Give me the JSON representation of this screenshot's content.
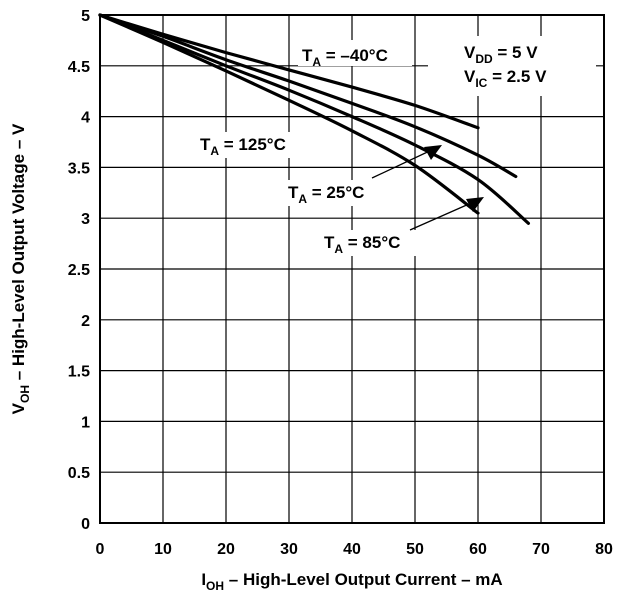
{
  "chart_data": {
    "type": "line",
    "xlabel": {
      "main": "I",
      "sub": "OH",
      "rest": " – High-Level Output Current – mA"
    },
    "ylabel": {
      "main": "V",
      "sub": "OH",
      "rest": " – High-Level Output Voltage – V"
    },
    "xlim": [
      0,
      80
    ],
    "ylim": [
      0,
      5
    ],
    "x_ticks": [
      "0",
      "10",
      "20",
      "30",
      "40",
      "50",
      "60",
      "70",
      "80"
    ],
    "y_ticks": [
      "0",
      "0.5",
      "1",
      "1.5",
      "2",
      "2.5",
      "3",
      "3.5",
      "4",
      "4.5",
      "5"
    ],
    "grid": true,
    "series": [
      {
        "name": "T_A = −40°C",
        "x": [
          0,
          10,
          20,
          30,
          40,
          50,
          60
        ],
        "y": [
          5.0,
          4.81,
          4.63,
          4.46,
          4.29,
          4.11,
          3.89
        ]
      },
      {
        "name": "T_A = 25°C",
        "x": [
          0,
          10,
          20,
          30,
          40,
          50,
          60,
          66
        ],
        "y": [
          5.0,
          4.79,
          4.56,
          4.35,
          4.13,
          3.9,
          3.62,
          3.41
        ]
      },
      {
        "name": "T_A = 85°C",
        "x": [
          0,
          10,
          20,
          30,
          40,
          50,
          60,
          68
        ],
        "y": [
          5.0,
          4.75,
          4.5,
          4.26,
          4.0,
          3.72,
          3.38,
          2.95
        ]
      },
      {
        "name": "T_A = 125°C",
        "x": [
          0,
          10,
          20,
          30,
          40,
          50,
          60
        ],
        "y": [
          5.0,
          4.73,
          4.45,
          4.16,
          3.86,
          3.52,
          3.05
        ]
      }
    ],
    "annotations": {
      "ta_m40": {
        "main": "T",
        "sub": "A",
        "rest": " = –40°C"
      },
      "ta_125": {
        "main": "T",
        "sub": "A",
        "rest": " = 125°C"
      },
      "ta_25": {
        "main": "T",
        "sub": "A",
        "rest": " = 25°C"
      },
      "ta_85": {
        "main": "T",
        "sub": "A",
        "rest": " = 85°C"
      },
      "vdd": {
        "main": "V",
        "sub": "DD",
        "rest": " = 5 V"
      },
      "vic": {
        "main": "V",
        "sub": "IC",
        "rest": " = 2.5 V"
      }
    }
  }
}
